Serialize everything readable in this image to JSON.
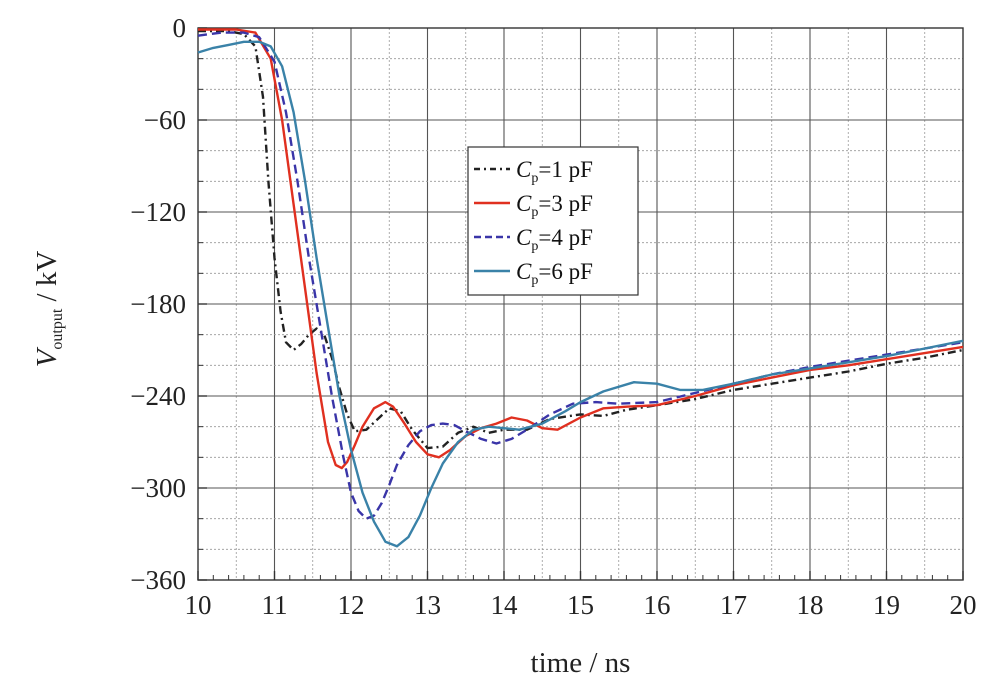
{
  "chart_data": {
    "type": "line",
    "xlabel": "time / ns",
    "ylabel_main": "V",
    "ylabel_sub": "output",
    "ylabel_unit": " / kV",
    "xlim": [
      10,
      20
    ],
    "ylim": [
      -360,
      0
    ],
    "xticks": [
      10,
      11,
      12,
      13,
      14,
      15,
      16,
      17,
      18,
      19,
      20
    ],
    "xtick_labels": [
      "10",
      "11",
      "12",
      "13",
      "14",
      "15",
      "16",
      "17",
      "18",
      "19",
      "20"
    ],
    "yticks": [
      0,
      -60,
      -120,
      -180,
      -240,
      -300,
      -360
    ],
    "ytick_labels": [
      "0",
      "−60",
      "−120",
      "−180",
      "−240",
      "−300",
      "−360"
    ],
    "grid": true,
    "legend_position": "center-top",
    "series": [
      {
        "name_var": "C",
        "name_sub": "p",
        "name_rest": "=1 pF",
        "color": "#222222",
        "dash": "dash-dot",
        "x": [
          10.0,
          10.4,
          10.6,
          10.75,
          10.85,
          10.92,
          11.0,
          11.08,
          11.15,
          11.25,
          11.35,
          11.45,
          11.55,
          11.65,
          11.75,
          11.85,
          11.95,
          12.05,
          12.2,
          12.35,
          12.5,
          12.65,
          12.8,
          13.0,
          13.2,
          13.4,
          13.6,
          13.8,
          14.0,
          14.3,
          14.6,
          15.0,
          15.3,
          15.6,
          16.0,
          16.5,
          17.0,
          17.5,
          18.0,
          18.5,
          19.0,
          19.5,
          20.0
        ],
        "y": [
          -2,
          -2,
          -4,
          -12,
          -45,
          -100,
          -150,
          -185,
          -205,
          -210,
          -206,
          -200,
          -196,
          -200,
          -215,
          -235,
          -252,
          -263,
          -262,
          -255,
          -248,
          -250,
          -262,
          -274,
          -273,
          -264,
          -260,
          -264,
          -262,
          -262,
          -255,
          -252,
          -253,
          -249,
          -246,
          -242,
          -236,
          -232,
          -228,
          -224,
          -219,
          -215,
          -210
        ]
      },
      {
        "name_var": "C",
        "name_sub": "p",
        "name_rest": "=3 pF",
        "color": "#e03020",
        "dash": "solid",
        "x": [
          10.0,
          10.5,
          10.75,
          10.95,
          11.1,
          11.25,
          11.4,
          11.55,
          11.7,
          11.8,
          11.88,
          11.95,
          12.05,
          12.15,
          12.3,
          12.45,
          12.55,
          12.7,
          12.85,
          13.0,
          13.15,
          13.3,
          13.5,
          13.7,
          13.9,
          14.1,
          14.3,
          14.5,
          14.7,
          15.0,
          15.3,
          15.6,
          16.0,
          16.5,
          17.0,
          17.5,
          18.0,
          18.5,
          19.0,
          19.5,
          20.0
        ],
        "y": [
          -1,
          -1,
          -3,
          -20,
          -60,
          -115,
          -170,
          -225,
          -270,
          -285,
          -287,
          -283,
          -272,
          -260,
          -248,
          -244,
          -247,
          -258,
          -270,
          -278,
          -280,
          -275,
          -266,
          -261,
          -258,
          -254,
          -256,
          -261,
          -262,
          -254,
          -248,
          -247,
          -246,
          -240,
          -233,
          -228,
          -223,
          -220,
          -216,
          -212,
          -208
        ]
      },
      {
        "name_var": "C",
        "name_sub": "p",
        "name_rest": "=4 pF",
        "color": "#3a35a8",
        "dash": "dashed",
        "x": [
          10.0,
          10.3,
          10.6,
          10.8,
          11.0,
          11.15,
          11.3,
          11.45,
          11.6,
          11.75,
          11.9,
          12.0,
          12.1,
          12.2,
          12.3,
          12.4,
          12.5,
          12.6,
          12.75,
          12.9,
          13.05,
          13.2,
          13.35,
          13.5,
          13.7,
          13.9,
          14.1,
          14.3,
          14.6,
          14.9,
          15.2,
          15.5,
          16.0,
          16.5,
          17.0,
          17.5,
          18.0,
          18.5,
          19.0,
          19.5,
          20.0
        ],
        "y": [
          -5,
          -3,
          -3,
          -6,
          -22,
          -55,
          -100,
          -150,
          -195,
          -240,
          -280,
          -303,
          -315,
          -320,
          -318,
          -310,
          -298,
          -285,
          -272,
          -263,
          -259,
          -258,
          -259,
          -263,
          -268,
          -271,
          -268,
          -262,
          -252,
          -245,
          -244,
          -245,
          -244,
          -238,
          -232,
          -226,
          -221,
          -217,
          -213,
          -209,
          -205
        ]
      },
      {
        "name_var": "C",
        "name_sub": "p",
        "name_rest": "=6 pF",
        "color": "#3a82a8",
        "dash": "solid",
        "x": [
          10.0,
          10.2,
          10.4,
          10.6,
          10.8,
          10.95,
          11.1,
          11.25,
          11.4,
          11.55,
          11.7,
          11.85,
          12.0,
          12.15,
          12.3,
          12.45,
          12.6,
          12.75,
          12.9,
          13.05,
          13.2,
          13.4,
          13.6,
          13.8,
          14.0,
          14.2,
          14.5,
          14.8,
          15.0,
          15.3,
          15.7,
          16.0,
          16.3,
          16.6,
          17.0,
          17.5,
          18.0,
          18.5,
          19.0,
          19.5,
          20.0
        ],
        "y": [
          -16,
          -13,
          -11,
          -9,
          -9,
          -12,
          -25,
          -55,
          -100,
          -150,
          -195,
          -240,
          -275,
          -303,
          -322,
          -335,
          -338,
          -332,
          -318,
          -300,
          -284,
          -270,
          -262,
          -260,
          -261,
          -262,
          -258,
          -250,
          -244,
          -237,
          -231,
          -232,
          -236,
          -236,
          -232,
          -226,
          -222,
          -218,
          -214,
          -209,
          -204
        ]
      }
    ]
  }
}
